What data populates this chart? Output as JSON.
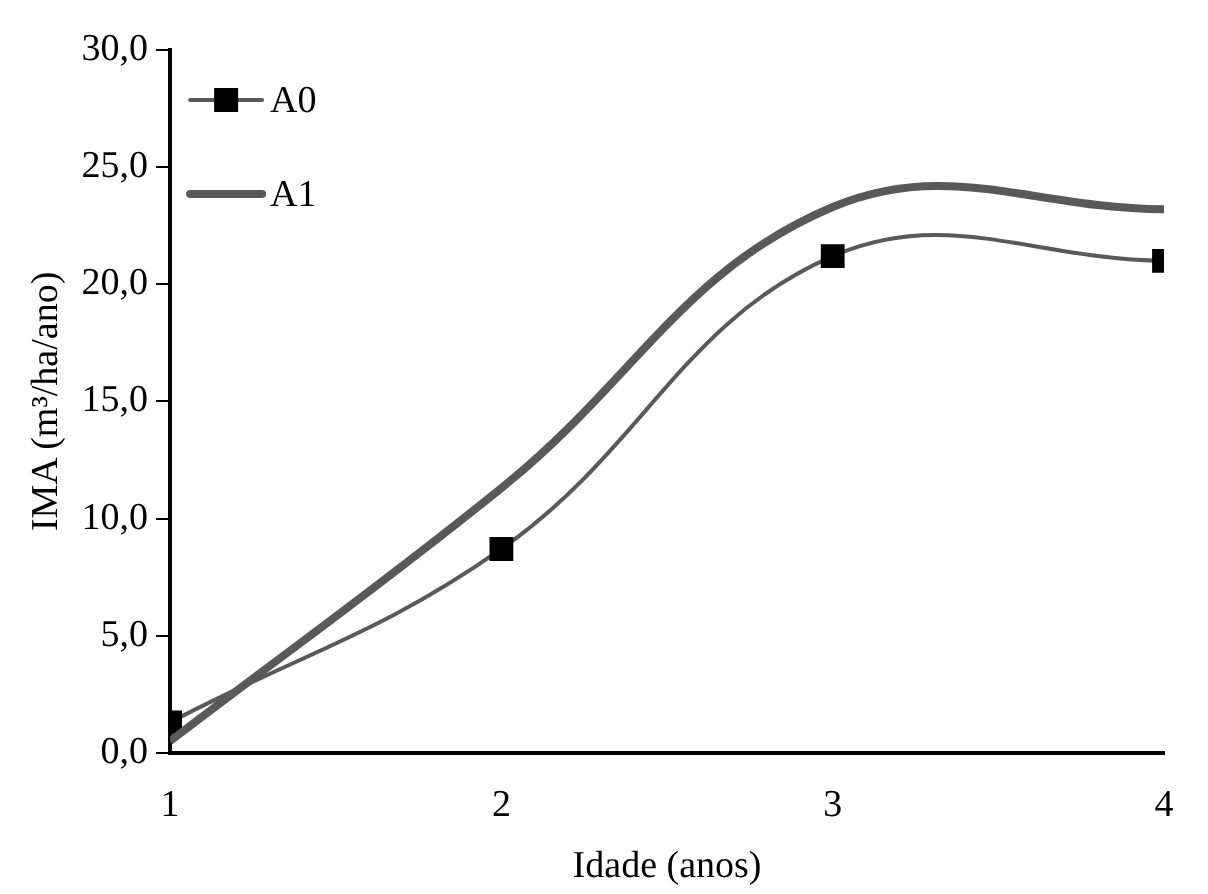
{
  "chart_data": {
    "type": "line",
    "xlabel": "Idade (anos)",
    "ylabel": "IMA (m³/ha/ano)",
    "x": [
      1,
      2,
      3,
      4
    ],
    "series": [
      {
        "name": "A0",
        "color": "#595959",
        "values": [
          1.3,
          8.7,
          21.2,
          21.0
        ],
        "marker": "square"
      },
      {
        "name": "A1",
        "color": "#595959",
        "values": [
          0.5,
          11.3,
          23.3,
          23.2
        ],
        "marker": "none"
      }
    ],
    "xlim": [
      1,
      4
    ],
    "xticks": [
      1,
      2,
      3,
      4
    ],
    "ylim": [
      0,
      30
    ],
    "yticks": [
      {
        "value": 0,
        "label": "0,0"
      },
      {
        "value": 5,
        "label": "5,0"
      },
      {
        "value": 10,
        "label": "10,0"
      },
      {
        "value": 15,
        "label": "15,0"
      },
      {
        "value": 20,
        "label": "20,0"
      },
      {
        "value": 25,
        "label": "25,0"
      },
      {
        "value": 30,
        "label": "30,0"
      }
    ],
    "grid": false,
    "legend": "top left"
  }
}
